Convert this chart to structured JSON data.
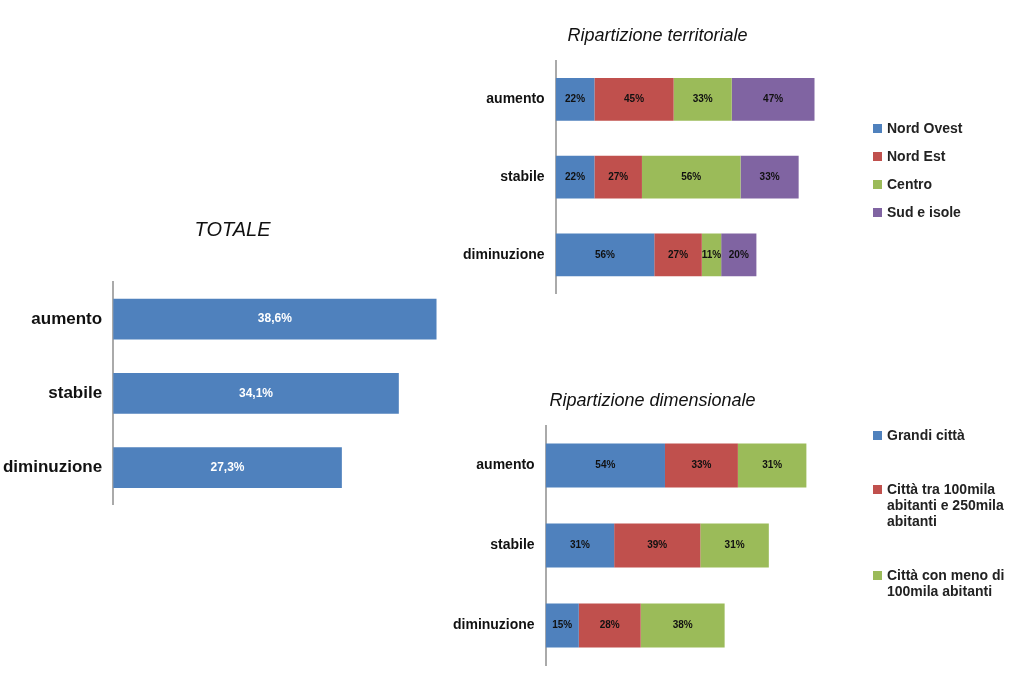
{
  "chart_data": [
    {
      "type": "bar",
      "orientation": "horizontal",
      "title": "TOTALE",
      "categories": [
        "aumento",
        "stabile",
        "diminuzione"
      ],
      "values": [
        38.6,
        34.1,
        27.3
      ],
      "value_labels": [
        "38,6%",
        "34,1%",
        "27,3%"
      ],
      "color": "#4f81bd",
      "grid": false,
      "legend": false
    },
    {
      "type": "bar",
      "orientation": "horizontal",
      "stacked": true,
      "title": "Ripartizione territoriale",
      "categories": [
        "aumento",
        "stabile",
        "diminuzione"
      ],
      "grid": false,
      "legend": "right",
      "series": [
        {
          "name": "Nord Ovest",
          "color": "#4f81bd",
          "values": [
            22,
            22,
            56
          ],
          "value_labels": [
            "22%",
            "22%",
            "56%"
          ]
        },
        {
          "name": "Nord Est",
          "color": "#c0504d",
          "values": [
            45,
            27,
            27
          ],
          "value_labels": [
            "45%",
            "27%",
            "27%"
          ]
        },
        {
          "name": "Centro",
          "color": "#9bbb59",
          "values": [
            33,
            56,
            11
          ],
          "value_labels": [
            "33%",
            "56%",
            "11%"
          ]
        },
        {
          "name": "Sud e isole",
          "color": "#8064a2",
          "values": [
            47,
            33,
            20
          ],
          "value_labels": [
            "47%",
            "33%",
            "20%"
          ]
        }
      ]
    },
    {
      "type": "bar",
      "orientation": "horizontal",
      "stacked": true,
      "title": "Ripartizione dimensionale",
      "categories": [
        "aumento",
        "stabile",
        "diminuzione"
      ],
      "grid": false,
      "legend": "right",
      "series": [
        {
          "name": "Grandi città",
          "color": "#4f81bd",
          "values": [
            54,
            31,
            15
          ],
          "value_labels": [
            "54%",
            "31%",
            "15%"
          ]
        },
        {
          "name": "Città tra 100mila abitanti e 250mila abitanti",
          "color": "#c0504d",
          "values": [
            33,
            39,
            28
          ],
          "value_labels": [
            "33%",
            "39%",
            "28%"
          ]
        },
        {
          "name": "Città con meno di 100mila abitanti",
          "color": "#9bbb59",
          "values": [
            31,
            31,
            38
          ],
          "value_labels": [
            "31%",
            "31%",
            "38%"
          ]
        }
      ]
    }
  ]
}
